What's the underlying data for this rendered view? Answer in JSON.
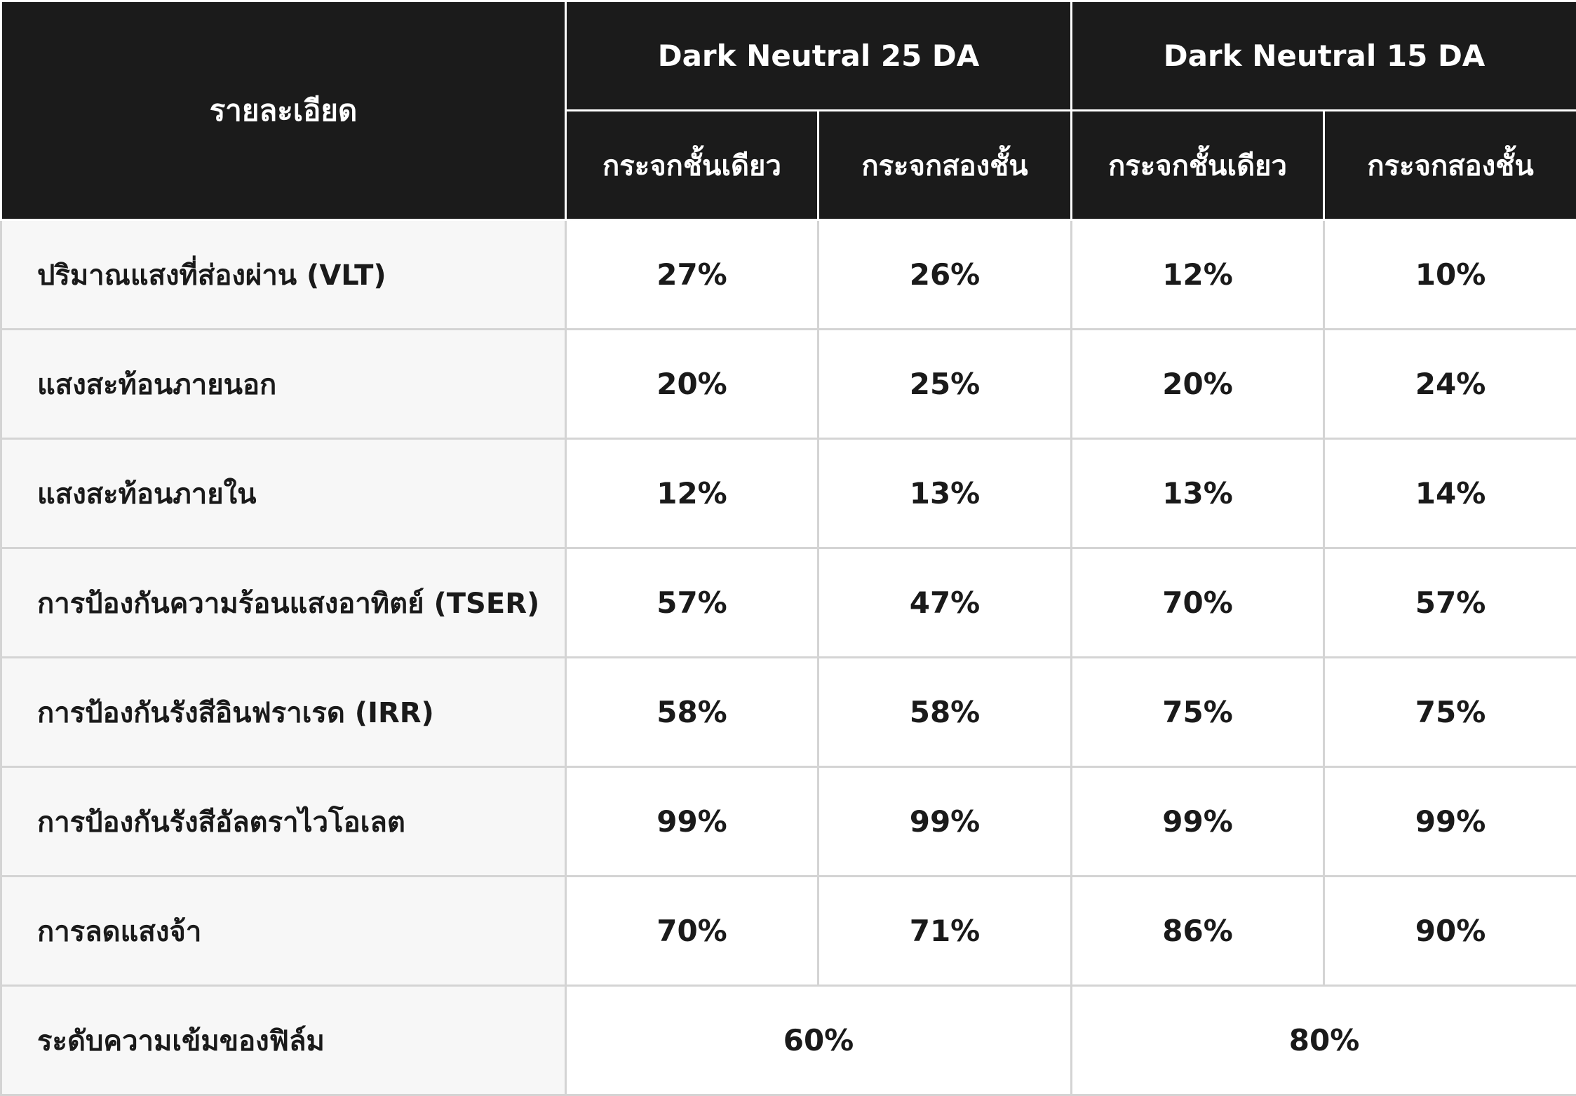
{
  "header": {
    "label_column": "รายละเอียด",
    "groups": [
      "Dark Neutral 25 DA",
      "Dark Neutral 15 DA"
    ],
    "sub_columns": [
      "กระจกชั้นเดียว",
      "กระจกสองชั้น",
      "กระจกชั้นเดียว",
      "กระจกสองชั้น"
    ]
  },
  "rows": [
    {
      "label": "ปริมาณแสงที่ส่องผ่าน (VLT)",
      "values": [
        "27%",
        "26%",
        "12%",
        "10%"
      ]
    },
    {
      "label": "แสงสะท้อนภายนอก",
      "values": [
        "20%",
        "25%",
        "20%",
        "24%"
      ]
    },
    {
      "label": "แสงสะท้อนภายใน",
      "values": [
        "12%",
        "13%",
        "13%",
        "14%"
      ]
    },
    {
      "label": "การป้องกันความร้อนแสงอาทิตย์ (TSER)",
      "values": [
        "57%",
        "47%",
        "70%",
        "57%"
      ]
    },
    {
      "label": "การป้องกันรังสีอินฟราเรด (IRR)",
      "values": [
        "58%",
        "58%",
        "75%",
        "75%"
      ]
    },
    {
      "label": "การป้องกันรังสีอัลตราไวโอเลต",
      "values": [
        "99%",
        "99%",
        "99%",
        "99%"
      ]
    },
    {
      "label": "การลดแสงจ้า",
      "values": [
        "70%",
        "71%",
        "86%",
        "90%"
      ]
    }
  ],
  "film_density": {
    "label": "ระดับความเข้มของฟิล์ม",
    "values": [
      "60%",
      "80%"
    ]
  },
  "colors": {
    "header_bg": "#1b1b1b",
    "header_text": "#ffffff",
    "label_bg": "#f7f7f7",
    "cell_bg": "#ffffff",
    "border": "#d4d4d4",
    "text": "#1a1a1a"
  }
}
